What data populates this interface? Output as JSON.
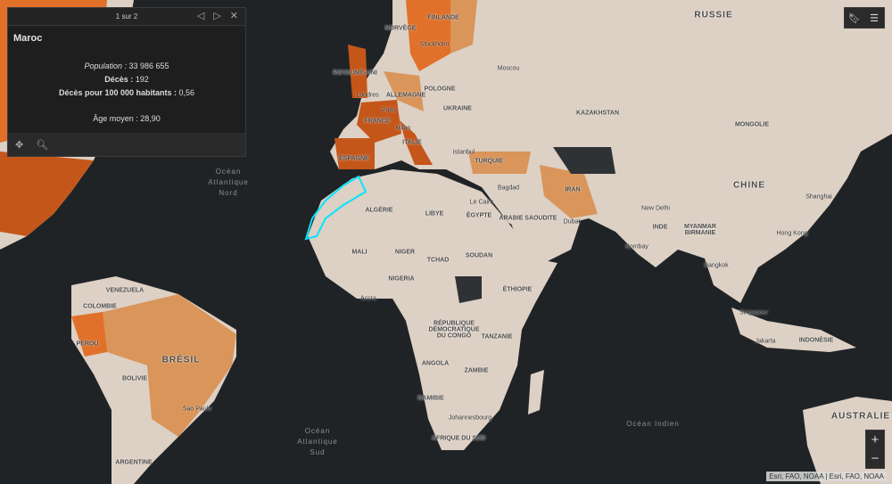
{
  "popup": {
    "pager": "1 sur 2",
    "title": "Maroc",
    "population_label": "Population :",
    "population": " 33 986 655",
    "deaths_label": "Décès :",
    "deaths": " 192",
    "rate_label": "Décès pour 100 000 habitants :",
    "rate": " 0,56",
    "age": "Âge moyen : 28,90",
    "icons": [
      "previous-icon",
      "next-icon",
      "close-icon",
      "move-icon",
      "zoom-to-icon"
    ]
  },
  "toolbar": {
    "icons": [
      "bookmark-icon",
      "legend-icon"
    ]
  },
  "zoom": {
    "in": "+",
    "out": "−"
  },
  "attribution": "Esri, FAO, NOAA | Esri, FAO, NOAA",
  "colors": {
    "ocean": "#1f2326",
    "land": "#ddd0c4",
    "light_orange": "#d9955a",
    "orange": "#e0702a",
    "dark_orange": "#c4561a",
    "highlight": "#00e5ff"
  },
  "labels": [
    "RUSSIE",
    "FINLANDE",
    "NORVÈGE",
    "Stockholm",
    "ROYAUME-UNI",
    "Moscou",
    "POLOGNE",
    "Londres",
    "ALLEMAGNE",
    "Paris",
    "UKRAINE",
    "FRANCE",
    "KAZAKHSTAN",
    "MONGOLIE",
    "Milan",
    "ITALIE",
    "ESPAGNE",
    "Istanbul",
    "TURQUIE",
    "CHINE",
    "Bagdad",
    "IRAN",
    "Le Caire",
    "ALGÉRIE",
    "LIBYE",
    "ÉGYPTE",
    "ARABIE SAOUDITE",
    "Dubaï",
    "New Delhi",
    "Shanghai",
    "INDE",
    "MYANMAR BIRMANIE",
    "Hong Kong",
    "Bombay",
    "MALI",
    "NIGER",
    "SOUDAN",
    "TCHAD",
    "Bangkok",
    "NIGERIA",
    "ÉTHIOPIE",
    "VENEZUELA",
    "Accra",
    "COLOMBIE",
    "Singapour",
    "RÉPUBLIQUE DÉMOCRATIQUE DU CONGO",
    "TANZANIE",
    "PÉROU",
    "Jakarta",
    "INDONÉSIE",
    "BRÉSIL",
    "ANGOLA",
    "ZAMBIE",
    "BOLIVIE",
    "NAMIBIE",
    "AUSTRALIE",
    "Sao Paulo",
    "Johannesbourg",
    "AFRIQUE DU SUD",
    "ARGENTINE"
  ],
  "oceans": [
    "Océan Atlantique Nord",
    "Océan Indien",
    "Océan Atlantique Sud"
  ]
}
